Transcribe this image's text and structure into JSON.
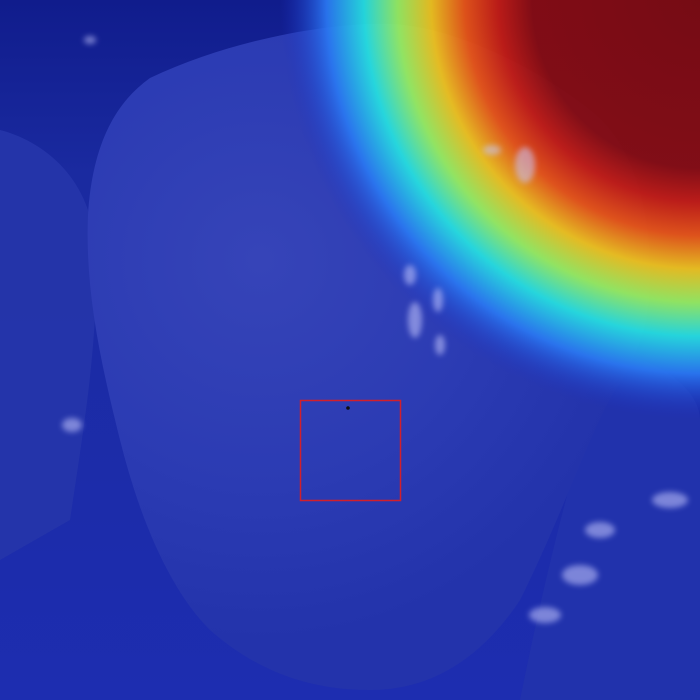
{
  "image": {
    "subject": "close-up-object-with-heatmap-overlay",
    "overlay": {
      "type": "heatmap",
      "colormap": "jet",
      "hotspot": "top-right"
    },
    "annotation": {
      "type": "bounding-box",
      "color": "#d21f2b"
    },
    "colors": {
      "base_blue": "#1c2fb0",
      "deep_navy": "#0f1d86",
      "hot_red": "#8b0d0d",
      "box_red": "#d21f2b"
    }
  }
}
